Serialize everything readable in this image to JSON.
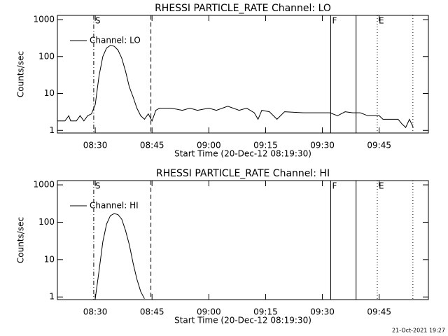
{
  "chart_data": [
    {
      "type": "line",
      "title": "RHESSI PARTICLE_RATE Channel: LO",
      "xlabel": "Start Time (20-Dec-12 08:19:30)",
      "ylabel": "Counts/sec",
      "log_y": true,
      "xlim": [
        500,
        598
      ],
      "ylim": [
        0.85,
        1300
      ],
      "xticks": [
        {
          "value": 510,
          "label": "08:30"
        },
        {
          "value": 525,
          "label": "08:45"
        },
        {
          "value": 540,
          "label": "09:00"
        },
        {
          "value": 555,
          "label": "09:15"
        },
        {
          "value": 570,
          "label": "09:30"
        },
        {
          "value": 585,
          "label": "09:45"
        }
      ],
      "yticks": [
        1,
        10,
        100,
        1000
      ],
      "x": [
        500,
        502,
        503,
        503.5,
        505,
        506,
        507,
        508,
        509,
        510,
        511,
        512,
        513,
        514,
        515,
        516,
        517,
        518,
        519,
        520,
        521,
        522,
        523,
        524,
        525,
        526,
        527,
        530,
        533,
        535,
        537,
        540,
        542,
        545,
        548,
        550,
        552,
        553,
        554,
        556,
        558,
        560,
        565,
        570,
        572,
        574,
        576,
        578,
        580,
        582,
        585,
        586,
        588,
        590,
        591,
        592,
        593,
        594
      ],
      "series": [
        {
          "name": "Channel: LO",
          "color": "#000000",
          "values": [
            1.8,
            1.8,
            2.5,
            1.8,
            1.8,
            2.5,
            1.8,
            2.5,
            2.8,
            5,
            30,
            100,
            170,
            200,
            190,
            150,
            90,
            40,
            15,
            8,
            4,
            2.5,
            2,
            2.8,
            1.8,
            3.5,
            4,
            4,
            3.5,
            4,
            3.5,
            4,
            3.5,
            4.5,
            3.5,
            4,
            3,
            2,
            3.5,
            3.2,
            2,
            3.2,
            3,
            3,
            3,
            2.5,
            3.2,
            3,
            3,
            2.5,
            2.5,
            2,
            2,
            2,
            1.5,
            1.2,
            2,
            1.2
          ]
        }
      ],
      "markers": [
        {
          "x": 509.6,
          "label": "S",
          "style": "dashdot"
        },
        {
          "x": 524.7,
          "style": "dashed"
        },
        {
          "x": 572.2,
          "label": "F",
          "style": "solid"
        },
        {
          "x": 578.9,
          "style": "solid"
        },
        {
          "x": 584.5,
          "label": "E",
          "style": "dotted"
        },
        {
          "x": 593.9,
          "style": "dotted"
        }
      ]
    },
    {
      "type": "line",
      "title": "RHESSI PARTICLE_RATE Channel: HI",
      "xlabel": "Start Time (20-Dec-12 08:19:30)",
      "ylabel": "Counts/sec",
      "log_y": true,
      "xlim": [
        500,
        598
      ],
      "ylim": [
        0.85,
        1300
      ],
      "xticks": [
        {
          "value": 510,
          "label": "08:30"
        },
        {
          "value": 525,
          "label": "08:45"
        },
        {
          "value": 540,
          "label": "09:00"
        },
        {
          "value": 555,
          "label": "09:15"
        },
        {
          "value": 570,
          "label": "09:30"
        },
        {
          "value": 585,
          "label": "09:45"
        }
      ],
      "yticks": [
        1,
        10,
        100,
        1000
      ],
      "x": [
        510,
        511,
        512,
        513,
        514,
        515,
        516,
        517,
        518,
        519,
        520,
        521,
        522,
        523
      ],
      "series": [
        {
          "name": "Channel: HI",
          "color": "#000000",
          "values": [
            0.9,
            5,
            30,
            90,
            150,
            170,
            160,
            120,
            60,
            25,
            8,
            3,
            1.4,
            0.9
          ]
        }
      ],
      "markers": [
        {
          "x": 509.6,
          "label": "S",
          "style": "dashdot"
        },
        {
          "x": 524.7,
          "style": "dashed"
        },
        {
          "x": 572.2,
          "label": "F",
          "style": "solid"
        },
        {
          "x": 578.9,
          "style": "solid"
        },
        {
          "x": 584.5,
          "label": "E",
          "style": "dotted"
        },
        {
          "x": 593.9,
          "style": "dotted"
        }
      ]
    }
  ],
  "footer": "21-Oct-2021 19:27"
}
